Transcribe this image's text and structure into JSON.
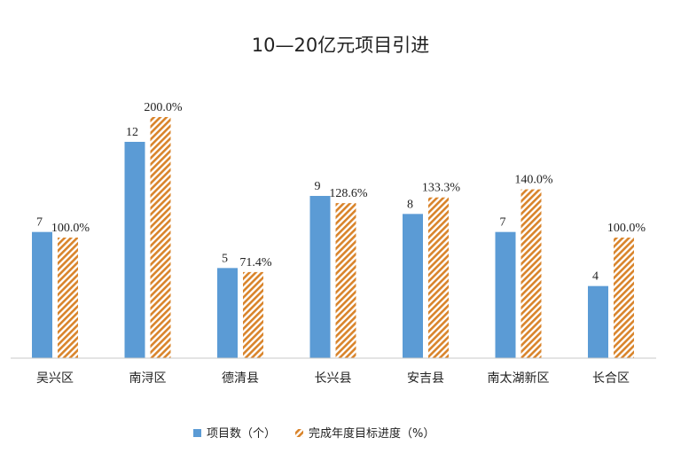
{
  "chart_data": {
    "type": "bar",
    "title": "10—20亿元项目引进",
    "categories": [
      "吴兴区",
      "南浔区",
      "德清县",
      "长兴县",
      "安吉县",
      "南太湖新区",
      "长合区"
    ],
    "series": [
      {
        "name": "项目数（个）",
        "values": [
          7,
          12,
          5,
          9,
          8,
          7,
          4
        ],
        "labels": [
          "7",
          "12",
          "5",
          "9",
          "8",
          "7",
          "4"
        ],
        "color": "#5b9bd5",
        "pattern": "solid"
      },
      {
        "name": "完成年度目标进度（%）",
        "values": [
          100.0,
          200.0,
          71.4,
          128.6,
          133.3,
          140.0,
          100.0
        ],
        "labels": [
          "100.0%",
          "200.0%",
          "71.4%",
          "128.6%",
          "133.3%",
          "140.0%",
          "100.0%"
        ],
        "color": "#d9842b",
        "pattern": "diagonal-stripes"
      }
    ],
    "grid": false,
    "legend_position": "bottom"
  }
}
